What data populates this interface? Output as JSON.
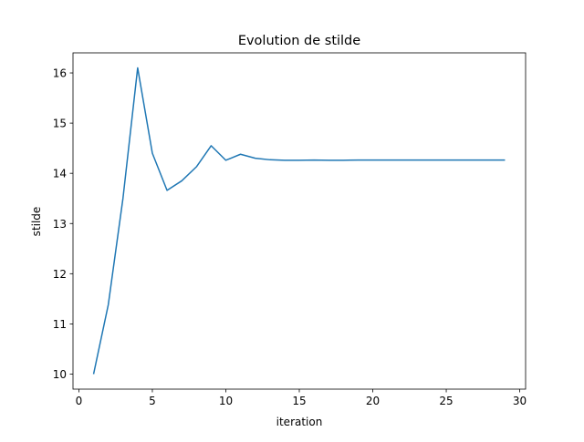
{
  "chart_data": {
    "type": "line",
    "title": "Evolution de stilde",
    "xlabel": "iteration",
    "ylabel": "stilde",
    "xlim": [
      -0.4,
      30.4
    ],
    "ylim": [
      9.7,
      16.4
    ],
    "xticks": [
      0,
      5,
      10,
      15,
      20,
      25,
      30
    ],
    "yticks": [
      10,
      11,
      12,
      13,
      14,
      15,
      16
    ],
    "grid": false,
    "series": [
      {
        "color": "#1f77b4",
        "x": [
          1,
          2,
          3,
          4,
          5,
          6,
          7,
          8,
          9,
          10,
          11,
          12,
          13,
          14,
          15,
          16,
          17,
          18,
          19,
          20,
          21,
          22,
          23,
          24,
          25,
          26,
          27,
          28,
          29
        ],
        "y": [
          10.0,
          11.38,
          13.5,
          16.1,
          14.4,
          13.66,
          13.85,
          14.13,
          14.55,
          14.26,
          14.38,
          14.3,
          14.27,
          14.26,
          14.26,
          14.265,
          14.26,
          14.26,
          14.265,
          14.265,
          14.265,
          14.265,
          14.265,
          14.265,
          14.265,
          14.265,
          14.265,
          14.265,
          14.265
        ]
      }
    ]
  }
}
